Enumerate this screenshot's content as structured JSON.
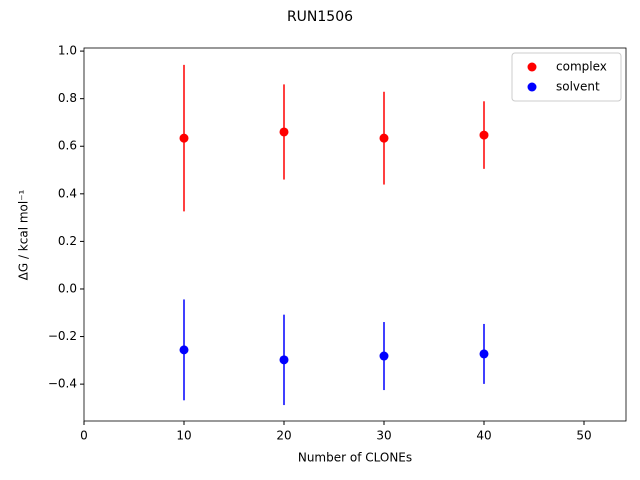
{
  "chart_data": {
    "type": "scatter",
    "title": "RUN1506",
    "xlabel": "Number of CLONEs",
    "ylabel": "ΔG / kcal mol⁻¹",
    "x": [
      10,
      20,
      30,
      40
    ],
    "series": [
      {
        "name": "complex",
        "color": "#ff0000",
        "values": [
          0.634,
          0.66,
          0.634,
          0.647
        ],
        "errors": [
          0.308,
          0.2,
          0.195,
          0.142
        ]
      },
      {
        "name": "solvent",
        "color": "#0000ff",
        "values": [
          -0.256,
          -0.298,
          -0.282,
          -0.273
        ],
        "errors": [
          0.212,
          0.19,
          0.143,
          0.126
        ]
      }
    ],
    "xlim": [
      0,
      54.2
    ],
    "xticks": [
      0,
      10,
      20,
      30,
      40,
      50
    ],
    "ylim": [
      -0.555,
      1.013
    ],
    "yticks": [
      {
        "value": -0.4,
        "label": "−0.4"
      },
      {
        "value": -0.2,
        "label": "−0.2"
      },
      {
        "value": 0,
        "label": "0.0"
      },
      {
        "value": 0.2,
        "label": "0.2"
      },
      {
        "value": 0.4,
        "label": "0.4"
      },
      {
        "value": 0.6,
        "label": "0.6"
      },
      {
        "value": 0.8,
        "label": "0.8"
      },
      {
        "value": 1,
        "label": "1.0"
      }
    ],
    "legend": "upper right"
  }
}
